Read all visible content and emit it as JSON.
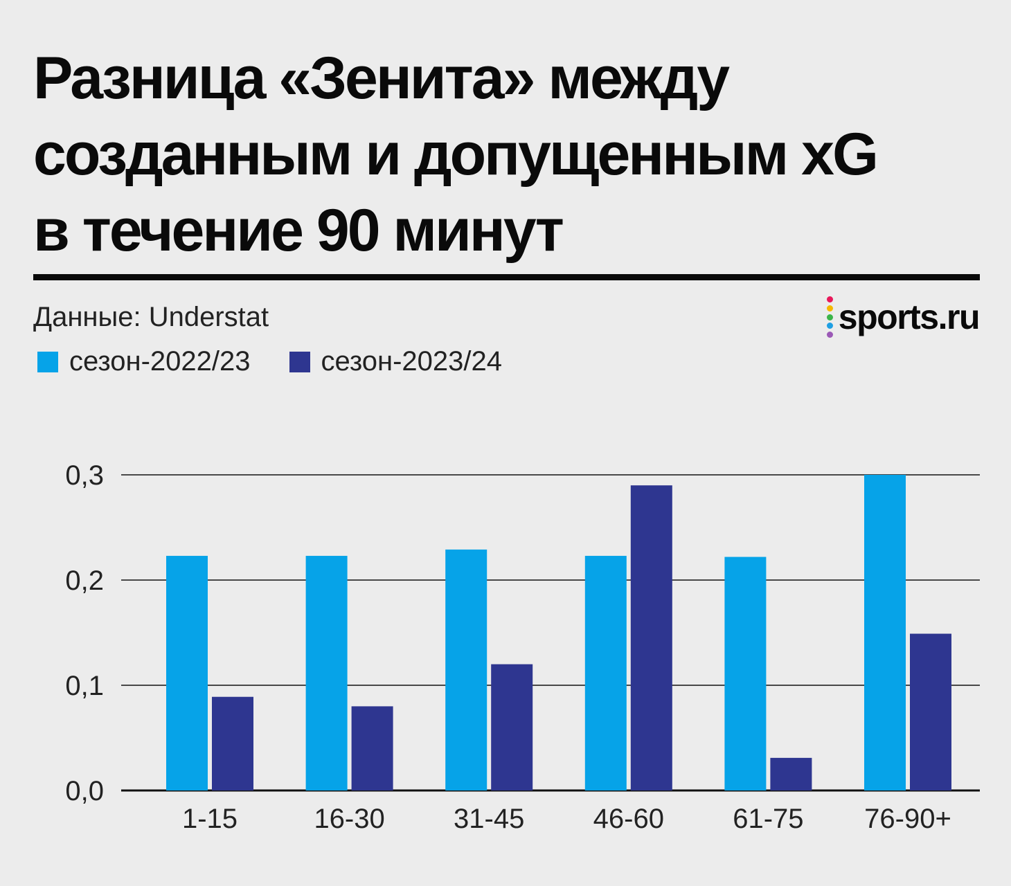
{
  "title_lines": [
    "Разница «Зенита» между",
    "созданным и допущенным xG",
    "в течение 90 минут"
  ],
  "source": "Данные: Understat",
  "logo": {
    "text": "sports.ru",
    "dot_colors": [
      "#e8185a",
      "#f5b800",
      "#3cb54a",
      "#1e9fe3",
      "#9b59b6"
    ]
  },
  "chart_data": {
    "type": "bar",
    "title": "Разница «Зенита» между созданным и допущенным xG в течение 90 минут",
    "categories": [
      "1-15",
      "16-30",
      "31-45",
      "46-60",
      "61-75",
      "76-90+"
    ],
    "series": [
      {
        "name": "сезон-2022/23",
        "color": "#06a3e8",
        "values": [
          0.223,
          0.223,
          0.229,
          0.223,
          0.222,
          0.3
        ]
      },
      {
        "name": "сезон-2023/24",
        "color": "#2e3690",
        "values": [
          0.089,
          0.08,
          0.12,
          0.29,
          0.031,
          0.149
        ]
      }
    ],
    "ylim": [
      0,
      0.3
    ],
    "yticks": [
      0,
      0.1,
      0.2,
      0.3
    ],
    "ytick_labels": [
      "0,0",
      "0,1",
      "0,2",
      "0,3"
    ],
    "grid": true,
    "legend": "top-left",
    "xlabel": "",
    "ylabel": ""
  }
}
